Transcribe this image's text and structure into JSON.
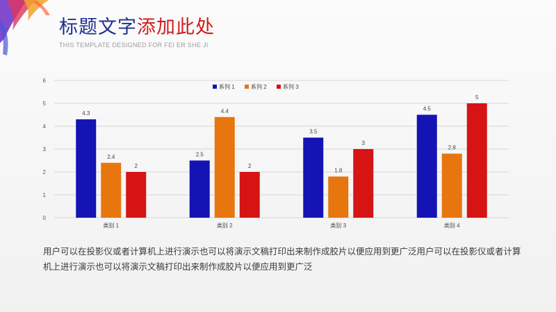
{
  "header": {
    "title_part1": "标题文字",
    "title_part2": "添加此处",
    "subtitle": "THIS TEMPLATE DESIGNED FOR FEI ER SHE JI",
    "title_color_1": "#1f2f8f",
    "title_color_2": "#d11c1c"
  },
  "chart_data": {
    "type": "bar",
    "categories": [
      "类别 1",
      "类别 2",
      "类别 3",
      "类别 4"
    ],
    "series": [
      {
        "name": "系列 1",
        "values": [
          4.3,
          2.5,
          3.5,
          4.5
        ],
        "color": "#1414b4"
      },
      {
        "name": "系列 2",
        "values": [
          2.4,
          4.4,
          1.8,
          2.8
        ],
        "color": "#e8760e"
      },
      {
        "name": "系列 3",
        "values": [
          2,
          2,
          3,
          5
        ],
        "color": "#d61414"
      }
    ],
    "ylim": [
      0,
      6
    ],
    "yticks": [
      0,
      1,
      2,
      3,
      4,
      5,
      6
    ],
    "grid": true,
    "legend": "top-center",
    "data_labels": true
  },
  "body": {
    "paragraph": "用户可以在投影仪或者计算机上进行演示也可以将演示文稿打印出来制作成胶片以便应用到更广泛用户可以在投影仪或者计算机上进行演示也可以将演示文稿打印出来制作成胶片以便应用到更广泛"
  }
}
